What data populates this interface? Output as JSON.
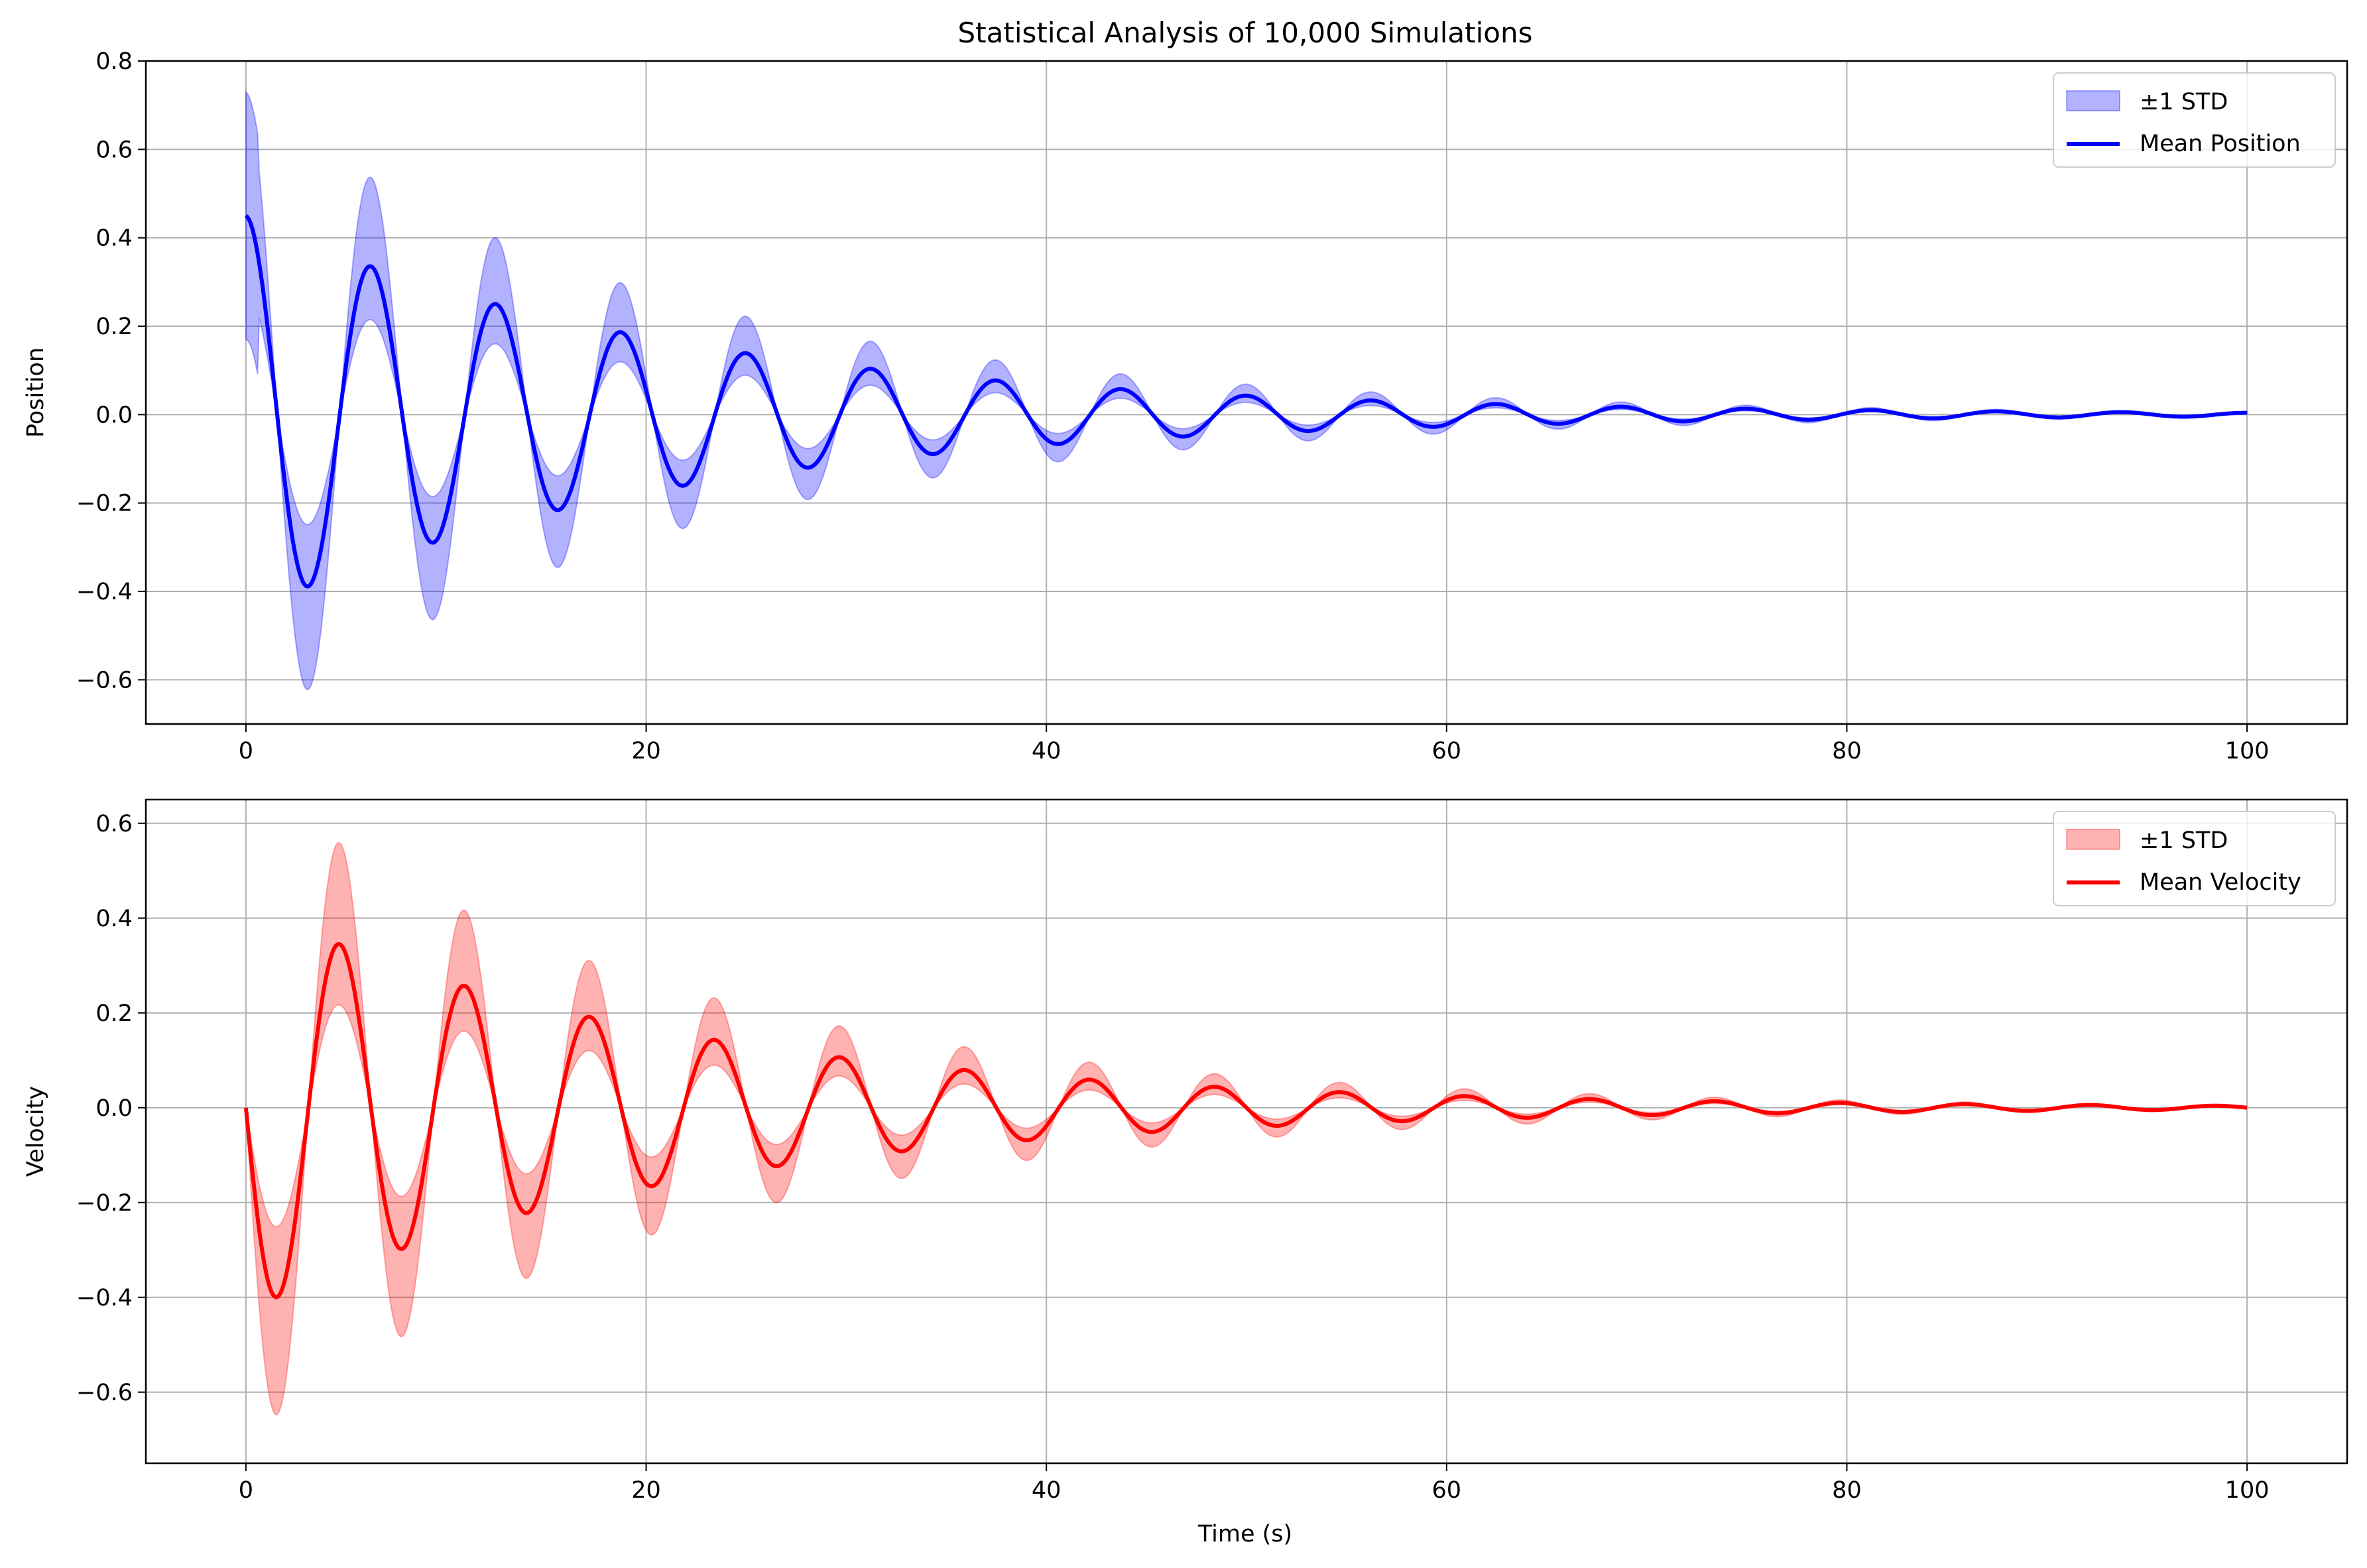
{
  "figure": {
    "title": "Statistical Analysis of 10,000 Simulations",
    "xlabel": "Time (s)"
  },
  "colors": {
    "grid": "#b0b0b0",
    "axes": "#000000",
    "legend_border": "#cccccc"
  },
  "chart_data": [
    {
      "type": "area",
      "ylabel": "Position",
      "xlim": [
        -5,
        105
      ],
      "ylim": [
        -0.7,
        0.8
      ],
      "xticks": [
        0,
        20,
        40,
        60,
        80,
        100
      ],
      "yticks": [
        -0.6,
        -0.4,
        -0.2,
        0.0,
        0.2,
        0.4,
        0.6,
        0.8
      ],
      "ytick_labels": [
        "−0.6",
        "−0.4",
        "−0.2",
        "0.0",
        "0.2",
        "0.4",
        "0.6",
        "0.8"
      ],
      "xtick_labels": [
        "0",
        "20",
        "40",
        "60",
        "80",
        "100"
      ],
      "grid": true,
      "legend": "top-right",
      "series": [
        {
          "name": "±1 STD",
          "kind": "band",
          "color": "#0000ff",
          "x": [
            0,
            0.6,
            1.6,
            3.2,
            4.8,
            6.3,
            7.9,
            9.5,
            11.0,
            12.6,
            14.2,
            15.8,
            17.4,
            18.9,
            20.5,
            22.1,
            23.7,
            25.2,
            26.8,
            28.4,
            30.0,
            31.5,
            33.1,
            34.7,
            36.3,
            37.8,
            39.4,
            41.0,
            42.6,
            44.1,
            45.7,
            47.3,
            48.9,
            50.4,
            52.0,
            53.6,
            55.2,
            56.7,
            58.3,
            59.9,
            61.5,
            63.0,
            64.6,
            66.2,
            67.8,
            69.3,
            70.9,
            72.5,
            74.1,
            75.6,
            77.2,
            78.8,
            80.4,
            81.9,
            83.5,
            85.1,
            86.7,
            88.2,
            89.8,
            91.4,
            93.0,
            94.5,
            96.1,
            97.7,
            99.3,
            100
          ],
          "upper": [
            0.73,
            0.55,
            0.02,
            -0.14,
            0.14,
            0.54,
            0.12,
            -0.1,
            0.11,
            0.39,
            0.08,
            -0.07,
            0.08,
            0.29,
            0.06,
            -0.05,
            0.06,
            0.21,
            0.04,
            -0.03,
            0.04,
            0.15,
            0.03,
            -0.02,
            0.03,
            0.11,
            0.02,
            -0.02,
            0.02,
            0.08,
            0.01,
            -0.01,
            0.015,
            0.06,
            0.01,
            -0.01,
            0.01,
            0.045,
            0.005,
            -0.005,
            0.01,
            0.035,
            0.005,
            -0.005,
            0.005,
            0.025,
            0.004,
            -0.004,
            0.004,
            0.018,
            0.003,
            -0.003,
            0.003,
            0.013,
            0.002,
            -0.002,
            0.002,
            0.009,
            0.001,
            -0.001,
            0.001,
            0.007,
            0.001,
            0.0,
            0.002,
            0.006
          ],
          "lower": [
            0.17,
            0.12,
            -0.12,
            -0.63,
            -0.04,
            0.12,
            -0.04,
            -0.46,
            -0.03,
            0.09,
            -0.03,
            -0.34,
            -0.02,
            0.06,
            -0.02,
            -0.25,
            -0.015,
            0.045,
            -0.015,
            -0.18,
            -0.01,
            0.035,
            -0.01,
            -0.14,
            -0.008,
            0.025,
            -0.008,
            -0.1,
            -0.006,
            0.018,
            -0.006,
            -0.07,
            -0.004,
            0.013,
            -0.004,
            -0.05,
            -0.003,
            0.009,
            -0.003,
            -0.035,
            -0.002,
            0.007,
            -0.002,
            -0.026,
            -0.0015,
            0.005,
            -0.0015,
            -0.018,
            -0.001,
            0.004,
            -0.001,
            -0.013,
            -0.0008,
            0.003,
            -0.0008,
            -0.009,
            -0.0005,
            0.002,
            -0.0005,
            -0.007,
            -0.0003,
            0.0015,
            -0.0003,
            -0.005,
            0.001,
            0.002
          ]
        },
        {
          "name": "Mean Position",
          "kind": "line",
          "color": "#0000ff",
          "amplitude": 0.45,
          "decay": 0.047,
          "period": 6.25,
          "phase": "cos",
          "x_range": [
            0,
            100
          ]
        }
      ]
    },
    {
      "type": "area",
      "ylabel": "Velocity",
      "xlim": [
        -5,
        105
      ],
      "ylim": [
        -0.75,
        0.65
      ],
      "xticks": [
        0,
        20,
        40,
        60,
        80,
        100
      ],
      "yticks": [
        -0.6,
        -0.4,
        -0.2,
        0.0,
        0.2,
        0.4,
        0.6
      ],
      "ytick_labels": [
        "−0.6",
        "−0.4",
        "−0.2",
        "0.0",
        "0.2",
        "0.4",
        "0.6"
      ],
      "xtick_labels": [
        "0",
        "20",
        "40",
        "60",
        "80",
        "100"
      ],
      "grid": true,
      "legend": "top-right",
      "series": [
        {
          "name": "±1 STD",
          "kind": "band",
          "color": "#ff0000",
          "amplitude_upper_pos": 0.58,
          "amplitude_lower_neg": 0.68,
          "inner_ratio": 0.36
        },
        {
          "name": "Mean Velocity",
          "kind": "line",
          "color": "#ff0000",
          "amplitude": 0.43,
          "decay": 0.047,
          "period": 6.25,
          "phase": "-sin",
          "x_range": [
            0,
            100
          ]
        }
      ]
    }
  ]
}
